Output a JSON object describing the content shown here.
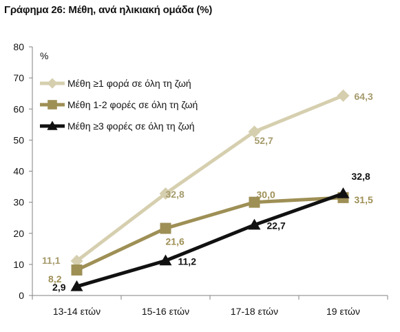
{
  "title": "Γράφημα 26: Μέθη, ανά ηλικιακή ομάδα (%)",
  "chart_data": {
    "type": "line",
    "title": "Γράφημα 26: Μέθη, ανά ηλικιακή ομάδα (%)",
    "ylabel": "%",
    "xlabel": "",
    "ylim": [
      0,
      80
    ],
    "yticks": [
      0,
      10,
      20,
      30,
      40,
      50,
      60,
      70,
      80
    ],
    "categories": [
      "13-14 ετών",
      "15-16 ετών",
      "17-18 ετών",
      "19 ετών"
    ],
    "grid": false,
    "legend_position": "top-left",
    "series": [
      {
        "name": "Μέθη ≥1 φορά σε όλη τη ζωή",
        "values": [
          11.1,
          32.8,
          52.7,
          64.3
        ],
        "labels": [
          "11,1",
          "32,8",
          "52,7",
          "64,3"
        ],
        "color": "#d6cfaf",
        "label_color": "#a59a6b",
        "marker": "diamond"
      },
      {
        "name": "Μέθη 1-2 φορές σε όλη τη ζωή",
        "values": [
          8.2,
          21.6,
          30.0,
          31.5
        ],
        "labels": [
          "8,2",
          "21,6",
          "30,0",
          "31,5"
        ],
        "color": "#9e8f55",
        "label_color": "#9e8f55",
        "marker": "square"
      },
      {
        "name": "Μέθη ≥3 φορές σε όλη τη ζωή",
        "values": [
          2.9,
          11.2,
          22.7,
          32.8
        ],
        "labels": [
          "2,9",
          "11,2",
          "22,7",
          "32,8"
        ],
        "color": "#111111",
        "label_color": "#111111",
        "marker": "triangle"
      }
    ]
  }
}
